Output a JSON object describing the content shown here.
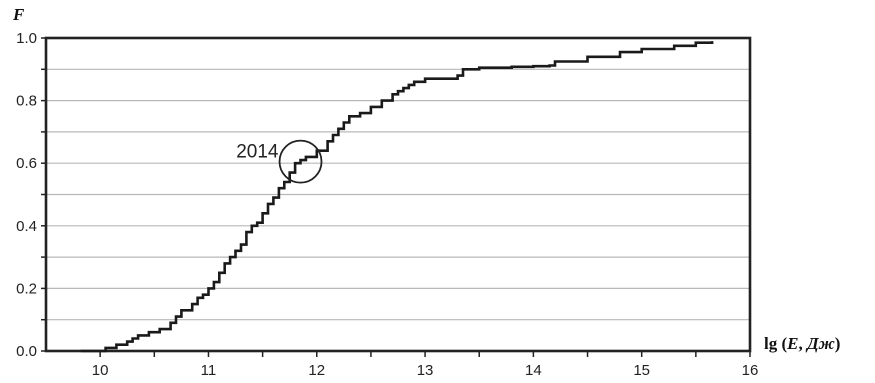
{
  "chart_data": {
    "type": "line",
    "xlabel": "lg (E, Дж)",
    "xlabel_parts": {
      "prefix": "lg (",
      "var": "E",
      "sep": ", ",
      "unit": "Дж",
      "suffix": ")"
    },
    "ylabel": "F",
    "xlim": [
      9.5,
      16
    ],
    "ylim": [
      0,
      1
    ],
    "xticks": [
      10,
      11,
      12,
      13,
      14,
      15,
      16
    ],
    "xtick_labels": [
      "10",
      "11",
      "12",
      "13",
      "14",
      "15",
      "16"
    ],
    "yticks": [
      0,
      0.2,
      0.4,
      0.6,
      0.8,
      1.0
    ],
    "ytick_labels": [
      "0.0",
      "0.2",
      "0.4",
      "0.6",
      "0.8",
      "1.0"
    ],
    "grid": "horizontal",
    "grid_step_y": 0.1,
    "series": [
      {
        "color": "#1a1a1a",
        "x": [
          9.82,
          10.05,
          10.15,
          10.25,
          10.3,
          10.35,
          10.45,
          10.55,
          10.65,
          10.7,
          10.75,
          10.85,
          10.9,
          10.95,
          11.0,
          11.05,
          11.1,
          11.15,
          11.2,
          11.25,
          11.3,
          11.35,
          11.4,
          11.45,
          11.5,
          11.55,
          11.6,
          11.65,
          11.7,
          11.75,
          11.8,
          11.85,
          11.9,
          12.0,
          12.1,
          12.15,
          12.2,
          12.25,
          12.3,
          12.4,
          12.5,
          12.6,
          12.7,
          12.75,
          12.8,
          12.85,
          12.9,
          13.0,
          13.1,
          13.3,
          13.35,
          13.5,
          13.8,
          14.0,
          14.15,
          14.2,
          14.5,
          14.8,
          15.0,
          15.3,
          15.5,
          15.65
        ],
        "y": [
          0.0,
          0.01,
          0.02,
          0.03,
          0.04,
          0.05,
          0.06,
          0.07,
          0.09,
          0.11,
          0.13,
          0.15,
          0.17,
          0.18,
          0.2,
          0.22,
          0.25,
          0.28,
          0.3,
          0.32,
          0.34,
          0.38,
          0.4,
          0.41,
          0.44,
          0.47,
          0.49,
          0.52,
          0.54,
          0.57,
          0.6,
          0.61,
          0.62,
          0.64,
          0.67,
          0.69,
          0.71,
          0.73,
          0.75,
          0.76,
          0.78,
          0.8,
          0.82,
          0.83,
          0.84,
          0.85,
          0.86,
          0.87,
          0.87,
          0.88,
          0.9,
          0.905,
          0.908,
          0.91,
          0.912,
          0.925,
          0.94,
          0.955,
          0.965,
          0.975,
          0.985,
          0.99
        ]
      }
    ],
    "annotations": [
      {
        "text": "2014",
        "x": 11.85,
        "y": 0.605,
        "shape": "circle"
      }
    ]
  }
}
